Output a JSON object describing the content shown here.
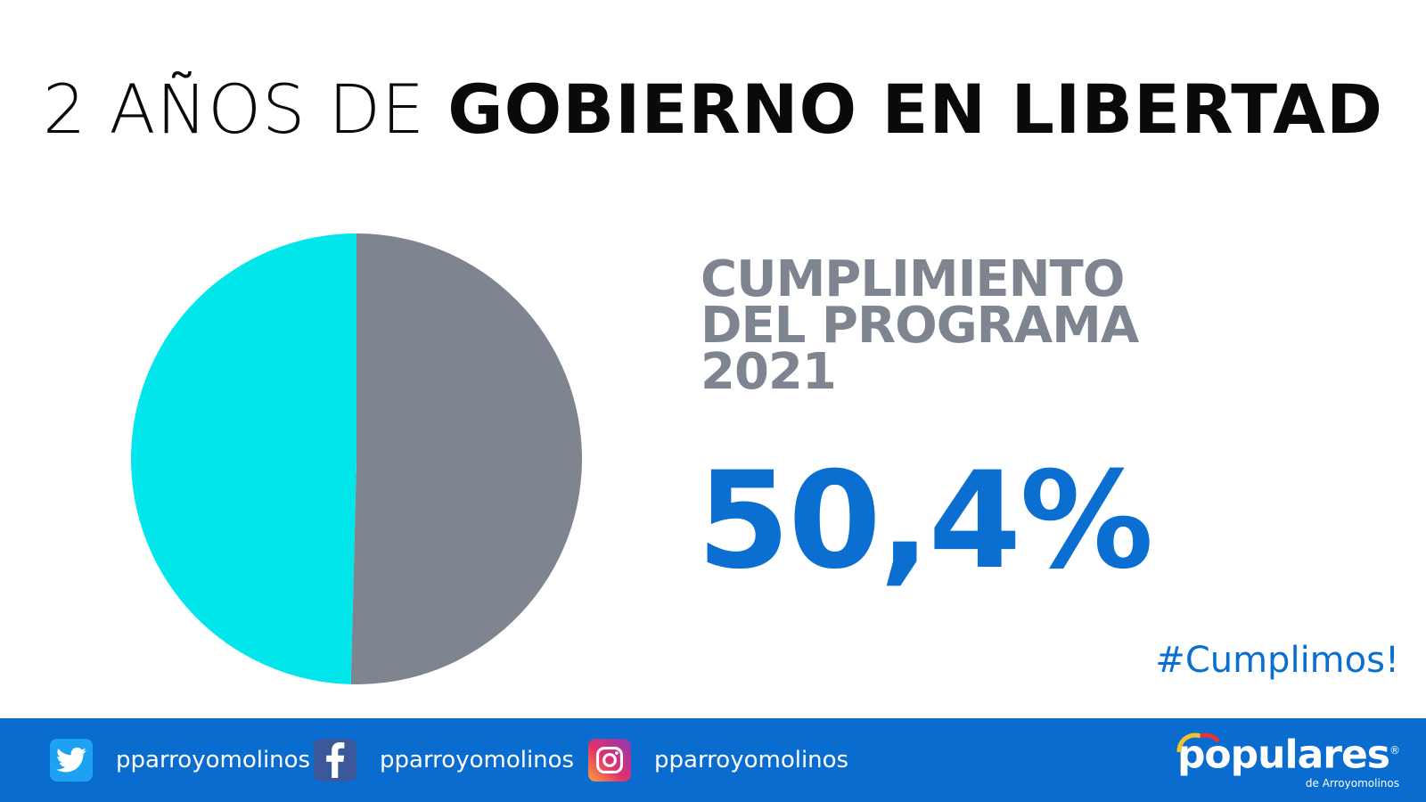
{
  "header": {
    "title_light": "2 AÑOS DE",
    "title_bold": "GOBIERNO EN LIBERTAD"
  },
  "chart_data": {
    "type": "pie",
    "title": "",
    "slices": [
      {
        "label": "",
        "value": 50.4,
        "color": "#7f8491"
      },
      {
        "label": "",
        "value": 49.6,
        "color": "#00e6ea"
      }
    ]
  },
  "stat": {
    "label_lines": [
      "CUMPLIMIENTO",
      "DEL PROGRAMA",
      "2021"
    ],
    "value": "50,4%"
  },
  "hashtag": "#Cumplimos!",
  "footer": {
    "social": [
      {
        "network": "twitter",
        "icon": "twitter-bird-icon",
        "handle": "pparroyomolinos"
      },
      {
        "network": "facebook",
        "icon": "facebook-f-icon",
        "handle": "pparroyomolinos"
      },
      {
        "network": "instagram",
        "icon": "instagram-camera-icon",
        "handle": "pparroyomolinos"
      }
    ],
    "logo": {
      "brand": "populares",
      "mark": "®",
      "subtitle": "de Arroyomolinos"
    }
  },
  "colors": {
    "accent_blue": "#0a6fd1",
    "footer_blue": "#0a6ccf",
    "slice_gray": "#7f8491",
    "slice_cyan": "#00e6ea"
  }
}
